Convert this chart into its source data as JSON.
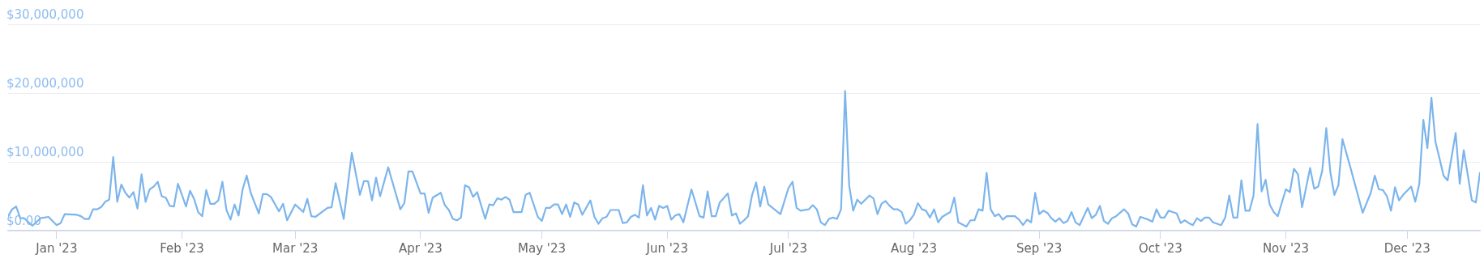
{
  "chart_data": {
    "type": "line",
    "xlim": [
      "2022-12-20",
      "2023-12-19"
    ],
    "ylim": [
      0,
      30000000
    ],
    "xticks": [
      {
        "value": "2023-01-01",
        "label": "Jan '23"
      },
      {
        "value": "2023-02-01",
        "label": "Feb '23"
      },
      {
        "value": "2023-03-01",
        "label": "Mar '23"
      },
      {
        "value": "2023-04-01",
        "label": "Apr '23"
      },
      {
        "value": "2023-05-01",
        "label": "May '23"
      },
      {
        "value": "2023-06-01",
        "label": "Jun '23"
      },
      {
        "value": "2023-07-01",
        "label": "Jul '23"
      },
      {
        "value": "2023-08-01",
        "label": "Aug '23"
      },
      {
        "value": "2023-09-01",
        "label": "Sep '23"
      },
      {
        "value": "2023-10-01",
        "label": "Oct '23"
      },
      {
        "value": "2023-11-01",
        "label": "Nov '23"
      },
      {
        "value": "2023-12-01",
        "label": "Dec '23"
      }
    ],
    "yticks": [
      {
        "value": 0,
        "label": "$0.00"
      },
      {
        "value": 10000000,
        "label": "$10,000,000"
      },
      {
        "value": 20000000,
        "label": "$20,000,000"
      },
      {
        "value": 30000000,
        "label": "$30,000,000"
      }
    ],
    "grid": "y",
    "legend": false,
    "marker": "none",
    "line_style": "solid",
    "series": [
      {
        "color": "#7cb5ec",
        "x": [
          "2022-12-20",
          "2022-12-21",
          "2022-12-22",
          "2022-12-23",
          "2022-12-24",
          "2022-12-26",
          "2022-12-28",
          "2022-12-30",
          "2023-01-01",
          "2023-01-02",
          "2023-01-03",
          "2023-01-06",
          "2023-01-07",
          "2023-01-08",
          "2023-01-09",
          "2023-01-10",
          "2023-01-11",
          "2023-01-12",
          "2023-01-13",
          "2023-01-14",
          "2023-01-15",
          "2023-01-16",
          "2023-01-17",
          "2023-01-18",
          "2023-01-19",
          "2023-01-20",
          "2023-01-21",
          "2023-01-22",
          "2023-01-23",
          "2023-01-24",
          "2023-01-25",
          "2023-01-26",
          "2023-01-27",
          "2023-01-28",
          "2023-01-29",
          "2023-01-30",
          "2023-01-31",
          "2023-02-01",
          "2023-02-02",
          "2023-02-03",
          "2023-02-04",
          "2023-02-05",
          "2023-02-06",
          "2023-02-07",
          "2023-02-08",
          "2023-02-09",
          "2023-02-10",
          "2023-02-11",
          "2023-02-12",
          "2023-02-13",
          "2023-02-14",
          "2023-02-15",
          "2023-02-16",
          "2023-02-17",
          "2023-02-18",
          "2023-02-20",
          "2023-02-21",
          "2023-02-22",
          "2023-02-23",
          "2023-02-25",
          "2023-02-26",
          "2023-02-27",
          "2023-03-01",
          "2023-03-03",
          "2023-03-04",
          "2023-03-05",
          "2023-03-06",
          "2023-03-09",
          "2023-03-10",
          "2023-03-11",
          "2023-03-13",
          "2023-03-15",
          "2023-03-17",
          "2023-03-18",
          "2023-03-19",
          "2023-03-20",
          "2023-03-21",
          "2023-03-22",
          "2023-03-24",
          "2023-03-27",
          "2023-03-28",
          "2023-03-29",
          "2023-03-30",
          "2023-04-01",
          "2023-04-02",
          "2023-04-03",
          "2023-04-04",
          "2023-04-06",
          "2023-04-07",
          "2023-04-08",
          "2023-04-09",
          "2023-04-10",
          "2023-04-11",
          "2023-04-12",
          "2023-04-13",
          "2023-04-14",
          "2023-04-15",
          "2023-04-17",
          "2023-04-18",
          "2023-04-19",
          "2023-04-20",
          "2023-04-21",
          "2023-04-22",
          "2023-04-23",
          "2023-04-24",
          "2023-04-25",
          "2023-04-26",
          "2023-04-27",
          "2023-04-28",
          "2023-04-30",
          "2023-05-01",
          "2023-05-02",
          "2023-05-03",
          "2023-05-04",
          "2023-05-05",
          "2023-05-06",
          "2023-05-07",
          "2023-05-08",
          "2023-05-09",
          "2023-05-10",
          "2023-05-11",
          "2023-05-13",
          "2023-05-14",
          "2023-05-15",
          "2023-05-16",
          "2023-05-17",
          "2023-05-18",
          "2023-05-20",
          "2023-05-21",
          "2023-05-22",
          "2023-05-23",
          "2023-05-24",
          "2023-05-25",
          "2023-05-26",
          "2023-05-27",
          "2023-05-28",
          "2023-05-29",
          "2023-05-30",
          "2023-05-31",
          "2023-06-01",
          "2023-06-02",
          "2023-06-03",
          "2023-06-04",
          "2023-06-05",
          "2023-06-07",
          "2023-06-09",
          "2023-06-10",
          "2023-06-11",
          "2023-06-12",
          "2023-06-13",
          "2023-06-14",
          "2023-06-16",
          "2023-06-17",
          "2023-06-18",
          "2023-06-19",
          "2023-06-20",
          "2023-06-21",
          "2023-06-22",
          "2023-06-23",
          "2023-06-24",
          "2023-06-25",
          "2023-06-26",
          "2023-06-29",
          "2023-07-01",
          "2023-07-02",
          "2023-07-03",
          "2023-07-04",
          "2023-07-06",
          "2023-07-07",
          "2023-07-08",
          "2023-07-09",
          "2023-07-10",
          "2023-07-11",
          "2023-07-12",
          "2023-07-13",
          "2023-07-14",
          "2023-07-15",
          "2023-07-16",
          "2023-07-17",
          "2023-07-18",
          "2023-07-19",
          "2023-07-21",
          "2023-07-22",
          "2023-07-23",
          "2023-07-24",
          "2023-07-25",
          "2023-07-26",
          "2023-07-27",
          "2023-07-28",
          "2023-07-29",
          "2023-07-30",
          "2023-07-31",
          "2023-08-01",
          "2023-08-02",
          "2023-08-03",
          "2023-08-04",
          "2023-08-05",
          "2023-08-06",
          "2023-08-07",
          "2023-08-08",
          "2023-08-10",
          "2023-08-11",
          "2023-08-12",
          "2023-08-14",
          "2023-08-15",
          "2023-08-16",
          "2023-08-17",
          "2023-08-18",
          "2023-08-19",
          "2023-08-20",
          "2023-08-21",
          "2023-08-22",
          "2023-08-23",
          "2023-08-24",
          "2023-08-26",
          "2023-08-27",
          "2023-08-28",
          "2023-08-29",
          "2023-08-30",
          "2023-08-31",
          "2023-09-01",
          "2023-09-02",
          "2023-09-03",
          "2023-09-04",
          "2023-09-05",
          "2023-09-06",
          "2023-09-07",
          "2023-09-08",
          "2023-09-09",
          "2023-09-10",
          "2023-09-11",
          "2023-09-13",
          "2023-09-14",
          "2023-09-15",
          "2023-09-16",
          "2023-09-17",
          "2023-09-18",
          "2023-09-19",
          "2023-09-20",
          "2023-09-22",
          "2023-09-23",
          "2023-09-24",
          "2023-09-25",
          "2023-09-26",
          "2023-09-28",
          "2023-09-29",
          "2023-09-30",
          "2023-10-01",
          "2023-10-02",
          "2023-10-03",
          "2023-10-04",
          "2023-10-05",
          "2023-10-06",
          "2023-10-07",
          "2023-10-08",
          "2023-10-09",
          "2023-10-10",
          "2023-10-11",
          "2023-10-12",
          "2023-10-13",
          "2023-10-14",
          "2023-10-16",
          "2023-10-17",
          "2023-10-18",
          "2023-10-19",
          "2023-10-20",
          "2023-10-21",
          "2023-10-22",
          "2023-10-23",
          "2023-10-24",
          "2023-10-25",
          "2023-10-26",
          "2023-10-27",
          "2023-10-28",
          "2023-10-29",
          "2023-10-30",
          "2023-11-01",
          "2023-11-02",
          "2023-11-03",
          "2023-11-04",
          "2023-11-05",
          "2023-11-07",
          "2023-11-08",
          "2023-11-09",
          "2023-11-10",
          "2023-11-11",
          "2023-11-12",
          "2023-11-13",
          "2023-11-14",
          "2023-11-15",
          "2023-11-17",
          "2023-11-20",
          "2023-11-22",
          "2023-11-23",
          "2023-11-24",
          "2023-11-25",
          "2023-11-26",
          "2023-11-27",
          "2023-11-28",
          "2023-11-29",
          "2023-11-30",
          "2023-12-02",
          "2023-12-03",
          "2023-12-04",
          "2023-12-05",
          "2023-12-06",
          "2023-12-07",
          "2023-12-08",
          "2023-12-09",
          "2023-12-10",
          "2023-12-11",
          "2023-12-13",
          "2023-12-14",
          "2023-12-15",
          "2023-12-17",
          "2023-12-18",
          "2023-12-19"
        ],
        "values": [
          2100000,
          3100000,
          3500000,
          1800000,
          1800000,
          700000,
          1800000,
          2000000,
          800000,
          1100000,
          2400000,
          2300000,
          2100000,
          1700000,
          1700000,
          3100000,
          3100000,
          3400000,
          4200000,
          4500000,
          10700000,
          4200000,
          6700000,
          5500000,
          4800000,
          5600000,
          3200000,
          8200000,
          4200000,
          6000000,
          6400000,
          7100000,
          5000000,
          4800000,
          3600000,
          3500000,
          6800000,
          5200000,
          3500000,
          5800000,
          4600000,
          2700000,
          2100000,
          5900000,
          3900000,
          3900000,
          4400000,
          7100000,
          3000000,
          1600000,
          3800000,
          2200000,
          6000000,
          8000000,
          5500000,
          2500000,
          5300000,
          5300000,
          4900000,
          2800000,
          3900000,
          1500000,
          3800000,
          2700000,
          4600000,
          2100000,
          2000000,
          3300000,
          3400000,
          6900000,
          1700000,
          11300000,
          5200000,
          7200000,
          7200000,
          4400000,
          7700000,
          5000000,
          9200000,
          3100000,
          4000000,
          8600000,
          8600000,
          5400000,
          5400000,
          2600000,
          4800000,
          5500000,
          3700000,
          3000000,
          1700000,
          1500000,
          1900000,
          6600000,
          6300000,
          4900000,
          5600000,
          1700000,
          3800000,
          3700000,
          4700000,
          4500000,
          4900000,
          4500000,
          2700000,
          2700000,
          2700000,
          5200000,
          5500000,
          2000000,
          1400000,
          3300000,
          3300000,
          3800000,
          3800000,
          2400000,
          3800000,
          2000000,
          4100000,
          3800000,
          2300000,
          4400000,
          2000000,
          1000000,
          1800000,
          2000000,
          3000000,
          3000000,
          1100000,
          1200000,
          2000000,
          2300000,
          1900000,
          6600000,
          2200000,
          3300000,
          1600000,
          3600000,
          3300000,
          3600000,
          1600000,
          2200000,
          2400000,
          1200000,
          6000000,
          2100000,
          1900000,
          5700000,
          2100000,
          2100000,
          4100000,
          5400000,
          2200000,
          2500000,
          1000000,
          1500000,
          2100000,
          5200000,
          7000000,
          3500000,
          6400000,
          3800000,
          2400000,
          6200000,
          7100000,
          3300000,
          2900000,
          3100000,
          3700000,
          3100000,
          1200000,
          800000,
          1700000,
          1900000,
          1700000,
          3100000,
          20300000,
          6600000,
          2900000,
          4500000,
          3900000,
          5100000,
          4700000,
          2400000,
          3900000,
          4300000,
          3600000,
          3100000,
          3100000,
          2700000,
          1000000,
          1500000,
          2300000,
          4000000,
          3100000,
          2900000,
          1900000,
          3100000,
          1200000,
          2000000,
          2700000,
          4800000,
          1200000,
          600000,
          1500000,
          1500000,
          3100000,
          2900000,
          8400000,
          3100000,
          2100000,
          2400000,
          1600000,
          2100000,
          2100000,
          1600000,
          800000,
          1600000,
          1200000,
          5500000,
          2400000,
          2900000,
          2600000,
          1800000,
          1300000,
          1800000,
          1100000,
          1400000,
          2700000,
          1200000,
          800000,
          3300000,
          1800000,
          2300000,
          3600000,
          1400000,
          1000000,
          1800000,
          2100000,
          3100000,
          2500000,
          900000,
          600000,
          2000000,
          1600000,
          1300000,
          3100000,
          1900000,
          1900000,
          2900000,
          2700000,
          2500000,
          1100000,
          1500000,
          1100000,
          800000,
          1800000,
          1400000,
          1900000,
          1900000,
          1200000,
          800000,
          1900000,
          5100000,
          1900000,
          1900000,
          7300000,
          2900000,
          2900000,
          5100000,
          15500000,
          5700000,
          7400000,
          3800000,
          2700000,
          2100000,
          6000000,
          5600000,
          9000000,
          8200000,
          3400000,
          9100000,
          6100000,
          6400000,
          8700000,
          14900000,
          8500000,
          5200000,
          6600000,
          13300000,
          9100000,
          2600000,
          5500000,
          8000000,
          6000000,
          5900000,
          5000000,
          2900000,
          6300000,
          4400000,
          5200000,
          6400000,
          4200000,
          6800000,
          16100000,
          12000000,
          19300000,
          12900000,
          10500000,
          8000000,
          7300000,
          14200000,
          6800000,
          11700000,
          4400000,
          4100000,
          8400000
        ]
      }
    ]
  }
}
